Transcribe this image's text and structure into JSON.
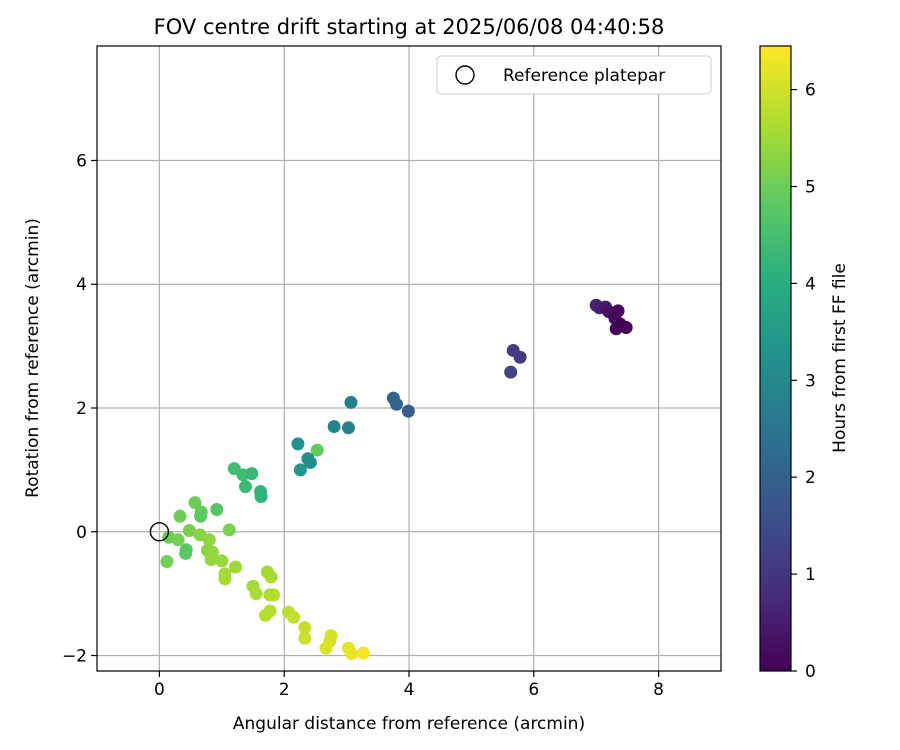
{
  "chart_data": {
    "type": "scatter",
    "title": "FOV centre drift starting at 2025/06/08 04:40:58",
    "xlabel": "Angular distance from reference (arcmin)",
    "ylabel": "Rotation from reference (arcmin)",
    "xlim": [
      -1,
      9
    ],
    "ylim": [
      -2.25,
      7.85
    ],
    "x_ticks": [
      0,
      2,
      4,
      6,
      8
    ],
    "y_ticks": [
      -2,
      0,
      2,
      4,
      6
    ],
    "grid": true,
    "legend": {
      "position": "top-right",
      "entries": [
        {
          "label": "Reference platepar",
          "marker": "open-circle",
          "color": "#000000"
        }
      ]
    },
    "reference_point": {
      "x": 0,
      "y": 0
    },
    "colorbar": {
      "label": "Hours from first FF file",
      "colormap": "viridis",
      "range": [
        0,
        6.45
      ],
      "ticks": [
        0,
        1,
        2,
        3,
        4,
        5,
        6
      ]
    },
    "points": [
      {
        "x": 7.0,
        "y": 3.66,
        "t": 0.6
      },
      {
        "x": 7.05,
        "y": 3.62,
        "t": 0.55
      },
      {
        "x": 7.15,
        "y": 3.63,
        "t": 0.45
      },
      {
        "x": 7.2,
        "y": 3.56,
        "t": 0.3
      },
      {
        "x": 7.3,
        "y": 3.45,
        "t": 0.15
      },
      {
        "x": 7.35,
        "y": 3.57,
        "t": 0.1
      },
      {
        "x": 7.32,
        "y": 3.28,
        "t": 0.05
      },
      {
        "x": 7.38,
        "y": 3.36,
        "t": 0.05
      },
      {
        "x": 7.48,
        "y": 3.3,
        "t": 0.0
      },
      {
        "x": 5.67,
        "y": 2.93,
        "t": 1.15
      },
      {
        "x": 5.78,
        "y": 2.82,
        "t": 1.1
      },
      {
        "x": 5.63,
        "y": 2.58,
        "t": 1.3
      },
      {
        "x": 3.75,
        "y": 2.16,
        "t": 2.1
      },
      {
        "x": 3.8,
        "y": 2.06,
        "t": 2.05
      },
      {
        "x": 3.99,
        "y": 1.95,
        "t": 1.9
      },
      {
        "x": 3.07,
        "y": 2.09,
        "t": 2.7
      },
      {
        "x": 2.8,
        "y": 1.7,
        "t": 2.9
      },
      {
        "x": 3.03,
        "y": 1.68,
        "t": 2.8
      },
      {
        "x": 2.53,
        "y": 1.32,
        "t": 4.9
      },
      {
        "x": 2.22,
        "y": 1.42,
        "t": 3.25
      },
      {
        "x": 2.38,
        "y": 1.18,
        "t": 3.2
      },
      {
        "x": 2.42,
        "y": 1.12,
        "t": 3.15
      },
      {
        "x": 2.26,
        "y": 1.0,
        "t": 3.4
      },
      {
        "x": 1.2,
        "y": 1.02,
        "t": 4.45
      },
      {
        "x": 1.34,
        "y": 0.92,
        "t": 4.4
      },
      {
        "x": 1.48,
        "y": 0.94,
        "t": 4.3
      },
      {
        "x": 1.38,
        "y": 0.73,
        "t": 4.35
      },
      {
        "x": 1.62,
        "y": 0.65,
        "t": 4.2
      },
      {
        "x": 1.63,
        "y": 0.57,
        "t": 4.15
      },
      {
        "x": 0.57,
        "y": 0.47,
        "t": 5.0
      },
      {
        "x": 0.67,
        "y": 0.32,
        "t": 4.9
      },
      {
        "x": 0.66,
        "y": 0.25,
        "t": 4.8
      },
      {
        "x": 0.92,
        "y": 0.36,
        "t": 4.7
      },
      {
        "x": 0.33,
        "y": 0.25,
        "t": 5.0
      },
      {
        "x": 0.48,
        "y": 0.02,
        "t": 5.1
      },
      {
        "x": 1.12,
        "y": 0.03,
        "t": 5.15
      },
      {
        "x": 0.15,
        "y": -0.09,
        "t": 5.0
      },
      {
        "x": 0.3,
        "y": -0.13,
        "t": 5.1
      },
      {
        "x": 0.65,
        "y": -0.05,
        "t": 5.25
      },
      {
        "x": 0.8,
        "y": -0.13,
        "t": 5.35
      },
      {
        "x": 0.43,
        "y": -0.29,
        "t": 4.8
      },
      {
        "x": 0.42,
        "y": -0.35,
        "t": 4.8
      },
      {
        "x": 0.77,
        "y": -0.3,
        "t": 5.3
      },
      {
        "x": 0.85,
        "y": -0.33,
        "t": 5.35
      },
      {
        "x": 0.83,
        "y": -0.45,
        "t": 5.4
      },
      {
        "x": 1.0,
        "y": -0.47,
        "t": 5.45
      },
      {
        "x": 1.22,
        "y": -0.57,
        "t": 5.5
      },
      {
        "x": 0.12,
        "y": -0.48,
        "t": 5.05
      },
      {
        "x": 1.05,
        "y": -0.68,
        "t": 5.55
      },
      {
        "x": 1.05,
        "y": -0.76,
        "t": 5.55
      },
      {
        "x": 1.73,
        "y": -0.65,
        "t": 5.55
      },
      {
        "x": 1.79,
        "y": -0.73,
        "t": 5.6
      },
      {
        "x": 1.5,
        "y": -0.88,
        "t": 5.55
      },
      {
        "x": 1.55,
        "y": -1.0,
        "t": 5.6
      },
      {
        "x": 1.77,
        "y": -1.02,
        "t": 5.65
      },
      {
        "x": 1.83,
        "y": -1.02,
        "t": 5.65
      },
      {
        "x": 1.77,
        "y": -1.28,
        "t": 5.7
      },
      {
        "x": 1.7,
        "y": -1.35,
        "t": 5.7
      },
      {
        "x": 2.07,
        "y": -1.3,
        "t": 5.8
      },
      {
        "x": 2.15,
        "y": -1.38,
        "t": 5.85
      },
      {
        "x": 2.33,
        "y": -1.55,
        "t": 5.9
      },
      {
        "x": 2.33,
        "y": -1.72,
        "t": 5.95
      },
      {
        "x": 2.75,
        "y": -1.68,
        "t": 6.05
      },
      {
        "x": 2.73,
        "y": -1.77,
        "t": 6.05
      },
      {
        "x": 2.67,
        "y": -1.88,
        "t": 6.1
      },
      {
        "x": 3.03,
        "y": -1.88,
        "t": 6.2
      },
      {
        "x": 3.08,
        "y": -1.97,
        "t": 6.25
      },
      {
        "x": 3.27,
        "y": -1.96,
        "t": 6.35
      }
    ]
  }
}
